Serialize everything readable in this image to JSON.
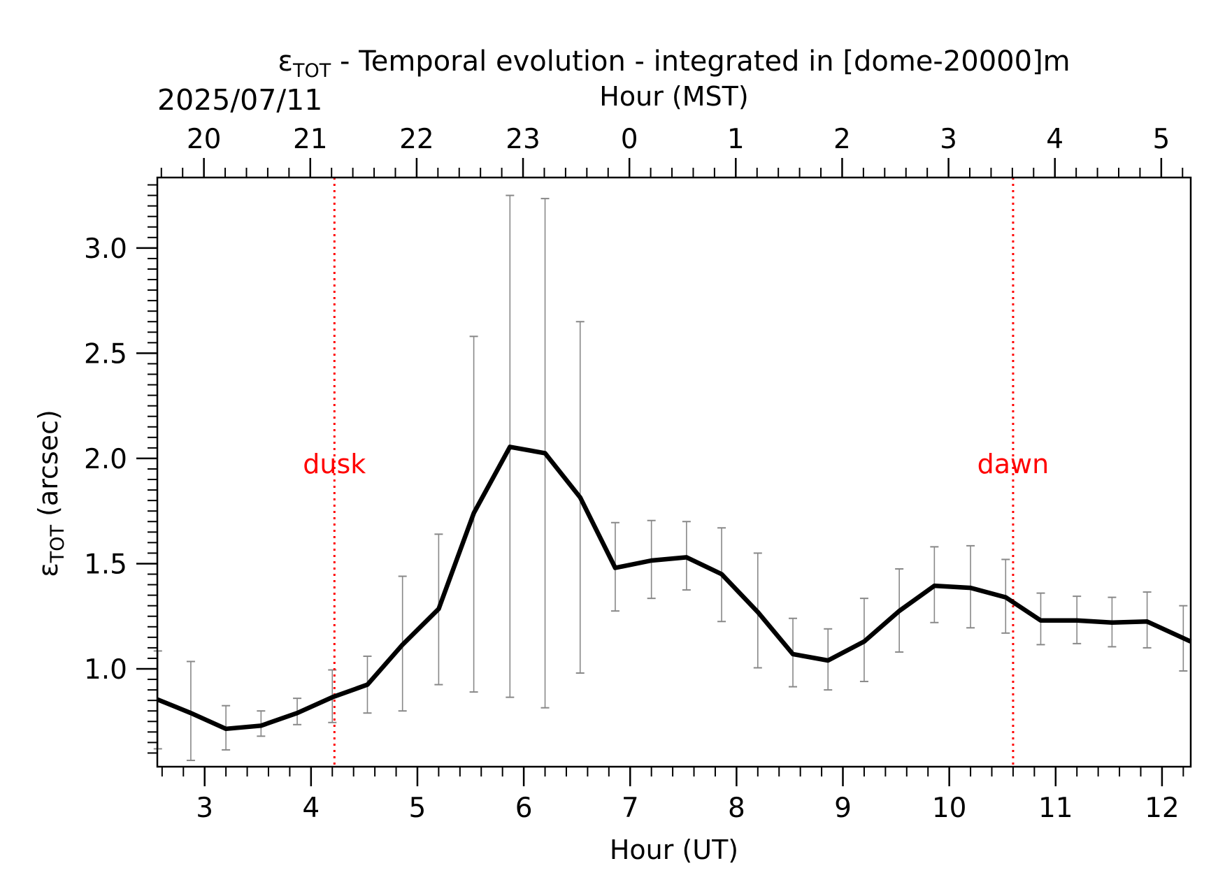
{
  "chart_data": {
    "type": "line",
    "title_main": "ε",
    "title_sub": "TOT",
    "title_rest": " - Temporal evolution - integrated in [dome-20000]m",
    "date_label": "2025/07/11",
    "xlabel": "Hour (UT)",
    "xlabel_top": "Hour (MST)",
    "ylabel_main": "ε",
    "ylabel_sub": "TOT",
    "ylabel_rest": " (arcsec)",
    "xlim": [
      2.555,
      12.27
    ],
    "ylim": [
      0.535,
      3.335
    ],
    "x_ticks": [
      3,
      4,
      5,
      6,
      7,
      8,
      9,
      10,
      11,
      12
    ],
    "x_tick_labels": [
      "3",
      "4",
      "5",
      "6",
      "7",
      "8",
      "9",
      "10",
      "11",
      "12"
    ],
    "top_x_ticks": [
      2.993,
      3.993,
      4.993,
      5.993,
      6.993,
      7.993,
      8.993,
      9.993,
      10.993,
      11.993
    ],
    "top_x_tick_labels": [
      "20",
      "21",
      "22",
      "23",
      "0",
      "1",
      "2",
      "3",
      "4",
      "5"
    ],
    "y_ticks": [
      1.0,
      1.5,
      2.0,
      2.5,
      3.0
    ],
    "y_tick_labels": [
      "1.0",
      "1.5",
      "2.0",
      "2.5",
      "3.0"
    ],
    "grid": false,
    "series": [
      {
        "color": "#000000",
        "x": [
          2.555,
          2.87,
          3.2,
          3.53,
          3.87,
          4.2,
          4.53,
          4.86,
          5.2,
          5.53,
          5.87,
          6.2,
          6.53,
          6.86,
          7.2,
          7.53,
          7.86,
          8.2,
          8.53,
          8.86,
          9.2,
          9.53,
          9.86,
          10.2,
          10.53,
          10.86,
          11.2,
          11.53,
          11.86,
          12.27
        ],
        "y": [
          0.855,
          0.79,
          0.715,
          0.73,
          0.79,
          0.865,
          0.925,
          1.115,
          1.285,
          1.74,
          2.055,
          2.025,
          1.815,
          1.48,
          1.515,
          1.53,
          1.45,
          1.27,
          1.07,
          1.04,
          1.13,
          1.275,
          1.395,
          1.385,
          1.34,
          1.23,
          1.23,
          1.22,
          1.225,
          1.13
        ]
      }
    ],
    "error_bars": {
      "color": "#888888",
      "x": [
        2.56,
        2.87,
        3.2,
        3.53,
        3.87,
        4.2,
        4.53,
        4.86,
        5.2,
        5.53,
        5.87,
        6.2,
        6.53,
        6.86,
        7.2,
        7.53,
        7.86,
        8.2,
        8.53,
        8.86,
        9.2,
        9.53,
        9.86,
        10.2,
        10.53,
        10.86,
        11.2,
        11.53,
        11.86,
        12.2
      ],
      "lower": [
        0.62,
        0.565,
        0.615,
        0.68,
        0.735,
        0.745,
        0.79,
        0.8,
        0.925,
        0.89,
        0.865,
        0.815,
        0.98,
        1.275,
        1.335,
        1.375,
        1.225,
        1.005,
        0.915,
        0.9,
        0.94,
        1.08,
        1.22,
        1.195,
        1.17,
        1.115,
        1.12,
        1.105,
        1.1,
        0.99
      ],
      "upper": [
        1.085,
        1.035,
        0.825,
        0.8,
        0.86,
        0.995,
        1.06,
        1.44,
        1.64,
        2.58,
        3.25,
        3.235,
        2.65,
        1.695,
        1.705,
        1.7,
        1.67,
        1.55,
        1.24,
        1.19,
        1.335,
        1.475,
        1.58,
        1.585,
        1.52,
        1.36,
        1.345,
        1.34,
        1.365,
        1.3
      ]
    },
    "annotations": [
      {
        "type": "vline",
        "x": 4.22,
        "color": "#ff0000",
        "style": "dotted",
        "label": "dusk",
        "label_y": 1.93
      },
      {
        "type": "vline",
        "x": 10.6,
        "color": "#ff0000",
        "style": "dotted",
        "label": "dawn",
        "label_y": 1.93
      }
    ]
  }
}
